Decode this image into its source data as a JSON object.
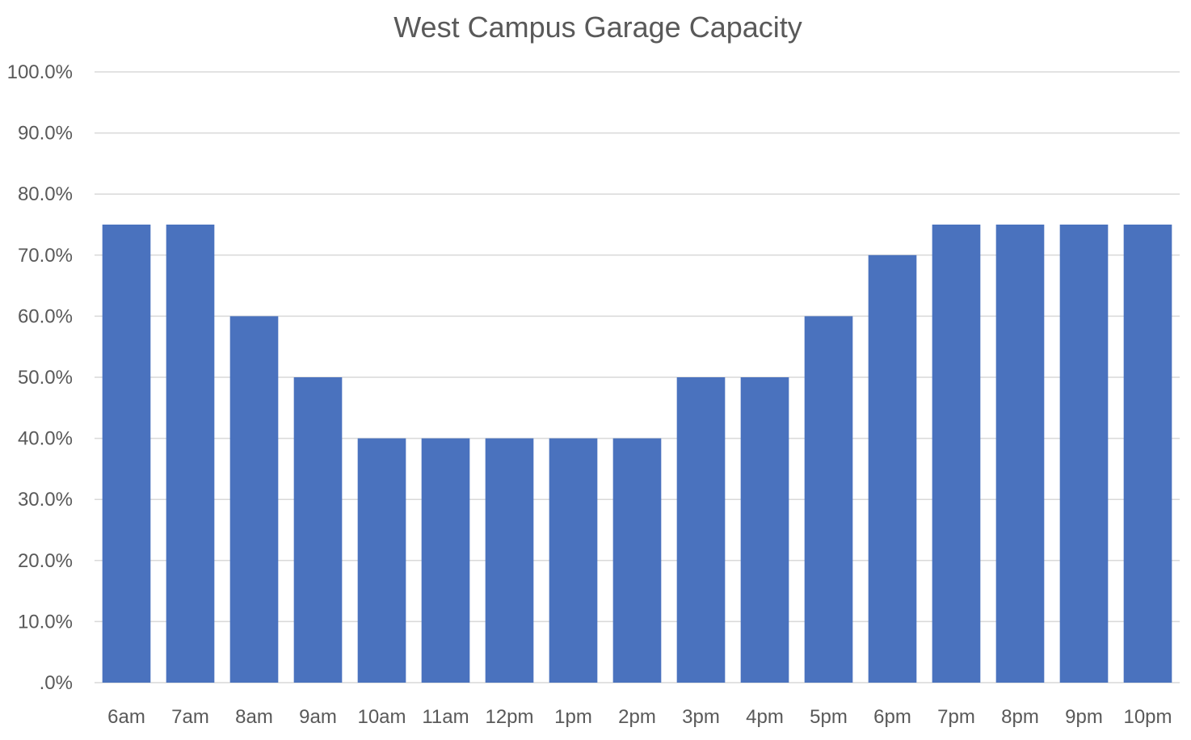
{
  "chart_data": {
    "type": "bar",
    "title": "West Campus Garage Capacity",
    "xlabel": "",
    "ylabel": "",
    "categories": [
      "6am",
      "7am",
      "8am",
      "9am",
      "10am",
      "11am",
      "12pm",
      "1pm",
      "2pm",
      "3pm",
      "4pm",
      "5pm",
      "6pm",
      "7pm",
      "8pm",
      "9pm",
      "10pm"
    ],
    "values": [
      75,
      75,
      60,
      50,
      40,
      40,
      40,
      40,
      40,
      50,
      50,
      60,
      70,
      75,
      75,
      75,
      75
    ],
    "ylim": [
      0,
      100
    ],
    "yticks": [
      0,
      10,
      20,
      30,
      40,
      50,
      60,
      70,
      80,
      90,
      100
    ],
    "ytick_labels": [
      ".0%",
      "10.0%",
      "20.0%",
      "30.0%",
      "40.0%",
      "50.0%",
      "60.0%",
      "70.0%",
      "80.0%",
      "90.0%",
      "100.0%"
    ],
    "grid": true,
    "legend": "none",
    "bar_color": "#4a72be"
  }
}
